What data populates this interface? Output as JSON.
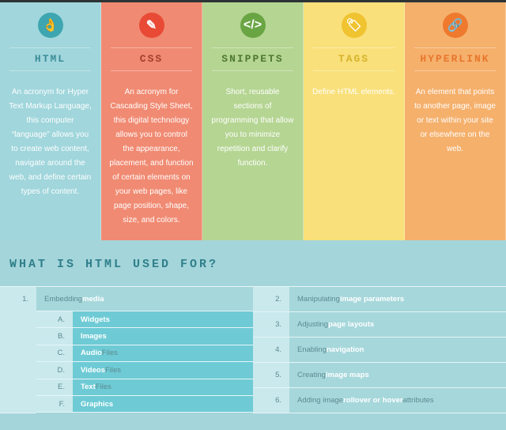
{
  "columns": [
    {
      "title": "HTML",
      "icon": "ok-hand-icon",
      "glyph": "👌",
      "bg": "#a0d6dc",
      "circle": "#3ea6b0",
      "title_color": "#3d8d98",
      "text": "An acronym for Hyper Text Markup Language, this computer “language” allows you to create web content, navigate around the web, and define certain types of content."
    },
    {
      "title": "CSS",
      "icon": "folder-magic-wand-icon",
      "glyph": "✎",
      "bg": "#f08a72",
      "circle": "#e84a35",
      "title_color": "#a3402e",
      "text": "An acronym for Cascading Style Sheet, this digital technology allows you to control the appearance, placement, and function of certain elements on your web pages, like page position, shape, size, and colors."
    },
    {
      "title": "SNIPPETS",
      "icon": "code-icon",
      "glyph": "</>",
      "bg": "#b5d592",
      "circle": "#6aa544",
      "title_color": "#4f7a30",
      "text": "Short, reusable sections of programming that allow you to minimize repetition and clarify function."
    },
    {
      "title": "TAGS",
      "icon": "tag-icon",
      "glyph": "🏷",
      "bg": "#f9e07a",
      "circle": "#f0c330",
      "title_color": "#d7b32b",
      "text": "Define HTML elements."
    },
    {
      "title": "HYPERLINK",
      "icon": "chain-link-icon",
      "glyph": "🔗",
      "bg": "#f5b06c",
      "circle": "#ef7a2e",
      "title_color": "#e8762c",
      "text": "An element that points to another page, image or text within your site or elsewhere on the web."
    }
  ],
  "heading": "WHAT IS HTML USED FOR?",
  "left": {
    "num": "1.",
    "pre": "Embedding ",
    "hl": "media",
    "post": "",
    "subs": [
      {
        "num": "A.",
        "hl": "Widgets",
        "post": ""
      },
      {
        "num": "B.",
        "hl": "Images",
        "post": ""
      },
      {
        "num": "C.",
        "hl": "Audio",
        "post": " Files"
      },
      {
        "num": "D.",
        "hl": "Videos",
        "post": " Files"
      },
      {
        "num": "E.",
        "hl": "Text",
        "post": " Files"
      },
      {
        "num": "F.",
        "hl": "Graphics",
        "post": ""
      }
    ]
  },
  "right": [
    {
      "num": "2.",
      "pre": "Manipulating ",
      "hl": "image parameters",
      "post": ""
    },
    {
      "num": "3.",
      "pre": "Adjusting ",
      "hl": "page layouts",
      "post": ""
    },
    {
      "num": "4.",
      "pre": "Enabling ",
      "hl": "navigation",
      "post": ""
    },
    {
      "num": "5.",
      "pre": "Creating ",
      "hl": "image maps",
      "post": ""
    },
    {
      "num": "6.",
      "pre": "Adding image ",
      "hl": "rollover or hover",
      "post": " attributes"
    }
  ]
}
